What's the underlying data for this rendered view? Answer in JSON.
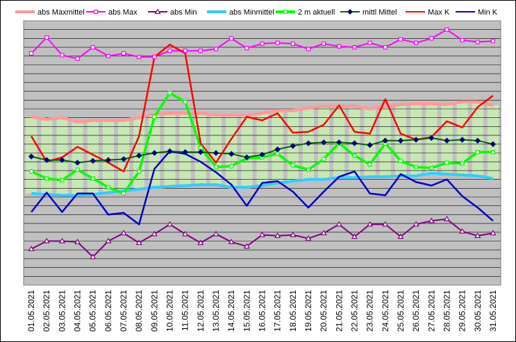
{
  "chart_data": {
    "type": "line",
    "title": "",
    "xlabel": "",
    "ylabel": "",
    "grid": true,
    "legend_position": "top",
    "ylim": [
      0,
      30
    ],
    "categories": [
      "01.05.2021",
      "02.05.2021",
      "03.05.2021",
      "04.05.2021",
      "05.05.2021",
      "06.05.2021",
      "07.05.2021",
      "08.05.2021",
      "09.05.2021",
      "10.05.2021",
      "11.05.2021",
      "12.05.2021",
      "13.05.2021",
      "14.05.2021",
      "15.05.2021",
      "16.05.2021",
      "17.05.2021",
      "18.05.2021",
      "19.05.2021",
      "20.05.2021",
      "21.05.2021",
      "22.05.2021",
      "23.05.2021",
      "24.05.2021",
      "25.05.2021",
      "26.05.2021",
      "27.05.2021",
      "28.05.2021",
      "29.05.2021",
      "30.05.2021",
      "31.05.2021"
    ],
    "series": [
      {
        "name": "abs Maxmittel",
        "color": "#ff9999",
        "marker": "none",
        "values": [
          19.1,
          18.8,
          19.0,
          18.5,
          18.7,
          18.7,
          18.7,
          19.0,
          19.4,
          19.5,
          19.5,
          19.5,
          19.3,
          19.3,
          19.3,
          19.5,
          19.8,
          19.8,
          20.1,
          20.3,
          20.3,
          20.3,
          20.0,
          20.3,
          20.5,
          20.6,
          20.6,
          20.5,
          20.8,
          20.8,
          20.4
        ]
      },
      {
        "name": "abs Max",
        "color": "#ff00ff",
        "marker": "square-open",
        "values": [
          26.3,
          28.1,
          26.1,
          25.7,
          27.0,
          26.0,
          26.3,
          25.9,
          25.9,
          26.6,
          26.6,
          26.6,
          26.8,
          28.0,
          26.9,
          27.4,
          27.5,
          27.4,
          26.8,
          27.4,
          27.1,
          27.0,
          27.5,
          27.0,
          27.9,
          27.5,
          28.0,
          29.0,
          27.8,
          27.6,
          27.7
        ]
      },
      {
        "name": "abs Min",
        "color": "#800080",
        "marker": "triangle-open",
        "values": [
          4.1,
          5.0,
          5.0,
          4.9,
          3.2,
          5.0,
          5.9,
          4.8,
          5.8,
          6.9,
          5.8,
          4.8,
          5.8,
          4.9,
          4.4,
          5.7,
          5.6,
          5.7,
          5.3,
          5.9,
          6.9,
          5.5,
          6.9,
          6.9,
          5.5,
          6.9,
          7.3,
          7.5,
          6.1,
          5.6,
          5.9
        ]
      },
      {
        "name": "abs Minmittel",
        "color": "#33ccff",
        "marker": "none",
        "values": [
          10.4,
          10.3,
          10.2,
          10.2,
          10.3,
          10.5,
          10.7,
          10.9,
          11.1,
          11.2,
          11.3,
          11.4,
          11.4,
          11.1,
          11.1,
          11.3,
          11.6,
          11.8,
          12.0,
          12.0,
          12.2,
          12.2,
          12.3,
          12.3,
          12.4,
          12.4,
          12.7,
          12.6,
          12.5,
          12.4,
          12.1
        ]
      },
      {
        "name": "2 m aktuell",
        "color": "#00ff00",
        "marker": "square-open",
        "values": [
          12.9,
          12.1,
          11.9,
          13.1,
          12.1,
          11.1,
          10.4,
          12.9,
          19.1,
          21.8,
          20.8,
          15.6,
          13.4,
          13.5,
          14.4,
          14.5,
          14.9,
          13.6,
          13.1,
          14.3,
          16.1,
          14.7,
          13.7,
          16.1,
          14.1,
          13.4,
          13.3,
          13.9,
          13.8,
          15.1,
          15.1
        ]
      },
      {
        "name": "mittl Mittel",
        "color": "#006600",
        "marker": "diamond",
        "values": [
          14.6,
          14.2,
          14.2,
          13.9,
          14.1,
          14.2,
          14.3,
          14.7,
          15.0,
          15.2,
          15.1,
          15.1,
          15.0,
          14.9,
          14.5,
          14.8,
          15.4,
          15.8,
          16.1,
          16.2,
          16.2,
          16.1,
          15.9,
          16.4,
          16.4,
          16.5,
          16.7,
          16.4,
          16.5,
          16.4,
          16.0
        ]
      },
      {
        "name": "Max K",
        "color": "#ff0000",
        "marker": "none",
        "values": [
          16.9,
          14.0,
          14.5,
          15.7,
          14.8,
          13.9,
          12.9,
          16.9,
          25.9,
          27.3,
          26.3,
          16.1,
          13.9,
          16.6,
          19.1,
          18.7,
          19.5,
          17.3,
          17.4,
          18.2,
          20.4,
          17.4,
          17.2,
          21.1,
          17.2,
          16.5,
          16.8,
          18.6,
          17.9,
          20.2,
          21.5
        ]
      },
      {
        "name": "Min K",
        "color": "#0000cc",
        "marker": "none",
        "values": [
          8.3,
          10.5,
          8.3,
          10.4,
          10.4,
          8.0,
          8.2,
          6.9,
          13.2,
          15.2,
          14.9,
          14.0,
          12.8,
          11.4,
          9.0,
          11.6,
          11.8,
          10.6,
          8.8,
          10.6,
          12.3,
          12.9,
          10.4,
          10.2,
          12.6,
          11.7,
          11.3,
          12.0,
          10.1,
          8.8,
          7.3
        ]
      }
    ]
  }
}
